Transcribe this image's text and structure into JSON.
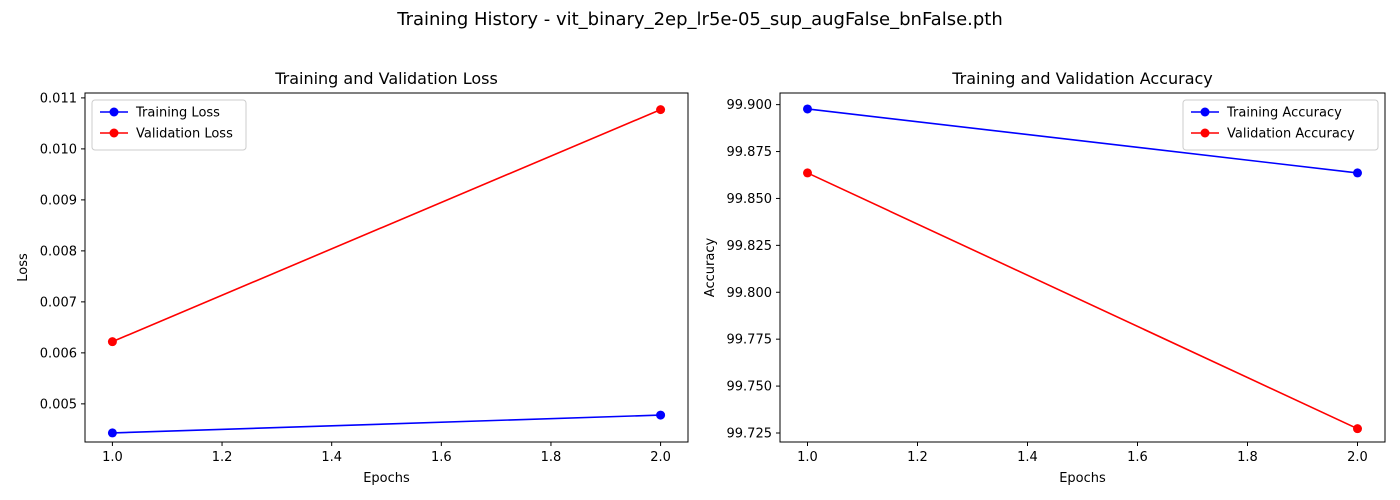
{
  "suptitle": "Training History - vit_binary_2ep_lr5e-05_sup_augFalse_bnFalse.pth",
  "chart_data": [
    {
      "type": "line",
      "title": "Training and Validation Loss",
      "xlabel": "Epochs",
      "ylabel": "Loss",
      "xlim": [
        0.95,
        2.05
      ],
      "ylim": [
        0.004252,
        0.011096
      ],
      "xticks": [
        1.0,
        1.2,
        1.4,
        1.6,
        1.8,
        2.0
      ],
      "xtick_labels": [
        "1.0",
        "1.2",
        "1.4",
        "1.6",
        "1.8",
        "2.0"
      ],
      "yticks": [
        0.005,
        0.006,
        0.007,
        0.008,
        0.009,
        0.01,
        0.011
      ],
      "ytick_labels": [
        "0.005",
        "0.006",
        "0.007",
        "0.008",
        "0.009",
        "0.010",
        "0.011"
      ],
      "grid": false,
      "legend_position": "upper left",
      "series": [
        {
          "name": "Training Loss",
          "color": "#0000ff",
          "marker": "circle",
          "x": [
            1.0,
            2.0
          ],
          "y": [
            0.00443,
            0.00478
          ]
        },
        {
          "name": "Validation Loss",
          "color": "#ff0000",
          "marker": "circle",
          "x": [
            1.0,
            2.0
          ],
          "y": [
            0.00622,
            0.01077
          ]
        }
      ]
    },
    {
      "type": "line",
      "title": "Training and Validation Accuracy",
      "xlabel": "Epochs",
      "ylabel": "Accuracy",
      "xlim": [
        0.95,
        2.05
      ],
      "ylim": [
        99.7202,
        99.9062
      ],
      "xticks": [
        1.0,
        1.2,
        1.4,
        1.6,
        1.8,
        2.0
      ],
      "xtick_labels": [
        "1.0",
        "1.2",
        "1.4",
        "1.6",
        "1.8",
        "2.0"
      ],
      "yticks": [
        99.725,
        99.75,
        99.775,
        99.8,
        99.825,
        99.85,
        99.875,
        99.9
      ],
      "ytick_labels": [
        "99.725",
        "99.750",
        "99.775",
        "99.800",
        "99.825",
        "99.850",
        "99.875",
        "99.900"
      ],
      "grid": false,
      "legend_position": "upper right",
      "series": [
        {
          "name": "Training Accuracy",
          "color": "#0000ff",
          "marker": "circle",
          "x": [
            1.0,
            2.0
          ],
          "y": [
            99.8977,
            99.8636
          ]
        },
        {
          "name": "Validation Accuracy",
          "color": "#ff0000",
          "marker": "circle",
          "x": [
            1.0,
            2.0
          ],
          "y": [
            99.8636,
            99.7273
          ]
        }
      ]
    }
  ]
}
